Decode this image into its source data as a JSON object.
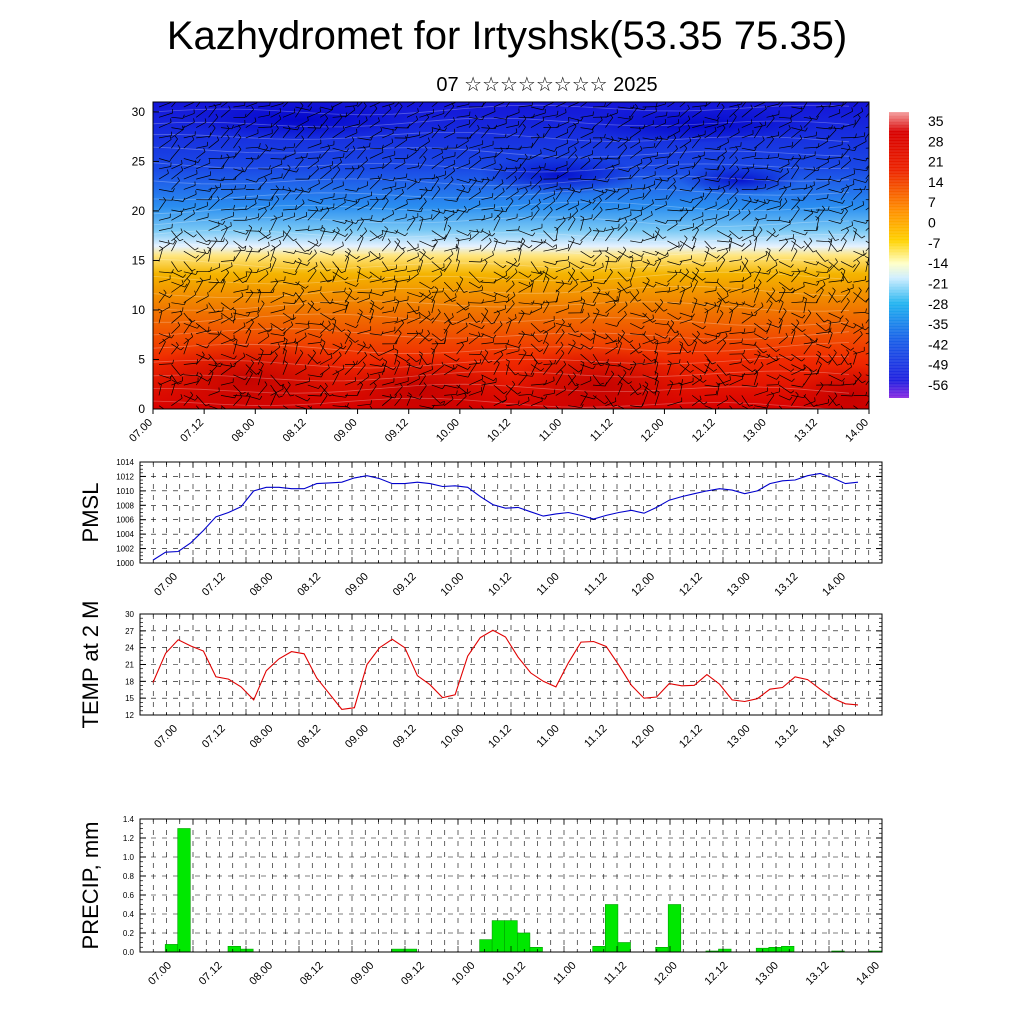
{
  "page": {
    "title": "Kazhydromet for Irtyshsk(53.35 75.35)",
    "subtitle": "07 ☆☆☆☆☆☆☆☆ 2025"
  },
  "chart_data": [
    {
      "id": "cross-section",
      "type": "heatmap",
      "title": "",
      "x_ticks": [
        "07.00",
        "07.12",
        "08.00",
        "08.12",
        "09.00",
        "09.12",
        "10.00",
        "10.12",
        "11.00",
        "11.12",
        "12.00",
        "12.12",
        "13.00",
        "13.12",
        "14.00"
      ],
      "ylim": [
        0,
        31
      ],
      "y_ticks": [
        "0",
        "5",
        "10",
        "15",
        "20",
        "25",
        "30"
      ],
      "colorbar_labels": [
        "35",
        "28",
        "21",
        "14",
        "7",
        "0",
        "-7",
        "-14",
        "-21",
        "-28",
        "-35",
        "-42",
        "-49",
        "-56"
      ],
      "colors": {
        "hot": "#d80000",
        "warm": "#f08c00",
        "mild": "#ffe680",
        "cool": "#36a6f0",
        "cold": "#1212e0"
      }
    },
    {
      "id": "pmsl",
      "type": "line",
      "ylabel": "PMSL",
      "ylim": [
        1000,
        1014
      ],
      "y_ticks": [
        "1000",
        "1002",
        "1004",
        "1006",
        "1008",
        "1010",
        "1012",
        "1014"
      ],
      "x_ticks": [
        "07.00",
        "07.12",
        "08.00",
        "08.12",
        "09.00",
        "09.12",
        "10.00",
        "10.12",
        "11.00",
        "11.12",
        "12.00",
        "12.12",
        "13.00",
        "13.12",
        "14.00"
      ],
      "color": "#0000cc",
      "values": [
        1000.4,
        1001.5,
        1001.6,
        1002.8,
        1004.5,
        1006.4,
        1007.0,
        1007.8,
        1010.0,
        1010.5,
        1010.5,
        1010.3,
        1010.3,
        1011.0,
        1011.1,
        1011.2,
        1011.8,
        1012.1,
        1011.7,
        1011.0,
        1011.0,
        1011.2,
        1011.0,
        1010.6,
        1010.7,
        1010.5,
        1009.2,
        1008.1,
        1007.6,
        1007.7,
        1007.1,
        1006.5,
        1006.8,
        1007.0,
        1006.6,
        1006.1,
        1006.6,
        1007.0,
        1007.3,
        1006.9,
        1007.7,
        1008.7,
        1009.2,
        1009.6,
        1010.0,
        1010.3,
        1010.1,
        1009.6,
        1010.0,
        1011.0,
        1011.4,
        1011.5,
        1012.1,
        1012.4,
        1011.8,
        1011.0,
        1011.2
      ]
    },
    {
      "id": "temp2m",
      "type": "line",
      "ylabel": "TEMP at 2 M",
      "ylim": [
        12,
        30
      ],
      "y_ticks": [
        "12",
        "15",
        "18",
        "21",
        "24",
        "27",
        "30"
      ],
      "x_ticks": [
        "07.00",
        "07.12",
        "08.00",
        "08.12",
        "09.00",
        "09.12",
        "10.00",
        "10.12",
        "11.00",
        "11.12",
        "12.00",
        "12.12",
        "13.00",
        "13.12",
        "14.00"
      ],
      "color": "#e00000",
      "values": [
        17.8,
        23.0,
        25.4,
        24.3,
        23.4,
        18.8,
        18.4,
        17.0,
        14.7,
        19.9,
        22.0,
        23.3,
        22.9,
        18.6,
        15.8,
        13.0,
        13.3,
        21.0,
        24.0,
        25.5,
        24.0,
        19.0,
        17.4,
        15.1,
        15.6,
        22.5,
        25.8,
        27.1,
        25.9,
        22.3,
        19.5,
        18.0,
        17.0,
        21.3,
        25.0,
        25.1,
        24.2,
        20.9,
        17.3,
        15.0,
        15.2,
        17.6,
        17.2,
        17.3,
        19.2,
        17.5,
        14.7,
        14.4,
        14.9,
        16.6,
        16.9,
        18.8,
        18.3,
        16.6,
        15.0,
        14.0,
        13.8
      ]
    },
    {
      "id": "precip",
      "type": "bar",
      "ylabel": "PRECIP, mm",
      "ylim": [
        0,
        1.4
      ],
      "y_ticks": [
        "0.0",
        "0.2",
        "0.4",
        "0.6",
        "0.8",
        "1.0",
        "1.2",
        "1.4"
      ],
      "x_ticks": [
        "07.00",
        "07.12",
        "08.00",
        "08.12",
        "09.00",
        "09.12",
        "10.00",
        "10.12",
        "11.00",
        "11.12",
        "12.00",
        "12.12",
        "13.00",
        "13.12",
        "14.00"
      ],
      "color": "#00e800",
      "values": [
        0,
        0,
        0.08,
        1.3,
        0,
        0,
        0,
        0.06,
        0.03,
        0,
        0,
        0,
        0,
        0,
        0,
        0,
        0,
        0,
        0,
        0,
        0.03,
        0.03,
        0,
        0,
        0,
        0,
        0,
        0.13,
        0.33,
        0.33,
        0.2,
        0.05,
        0,
        0,
        0,
        0,
        0.06,
        0.5,
        0.1,
        0,
        0,
        0.05,
        0.5,
        0,
        0,
        0.01,
        0.03,
        0,
        0,
        0.04,
        0.05,
        0.06,
        0,
        0,
        0,
        0.01,
        0,
        0,
        0.01
      ]
    }
  ]
}
